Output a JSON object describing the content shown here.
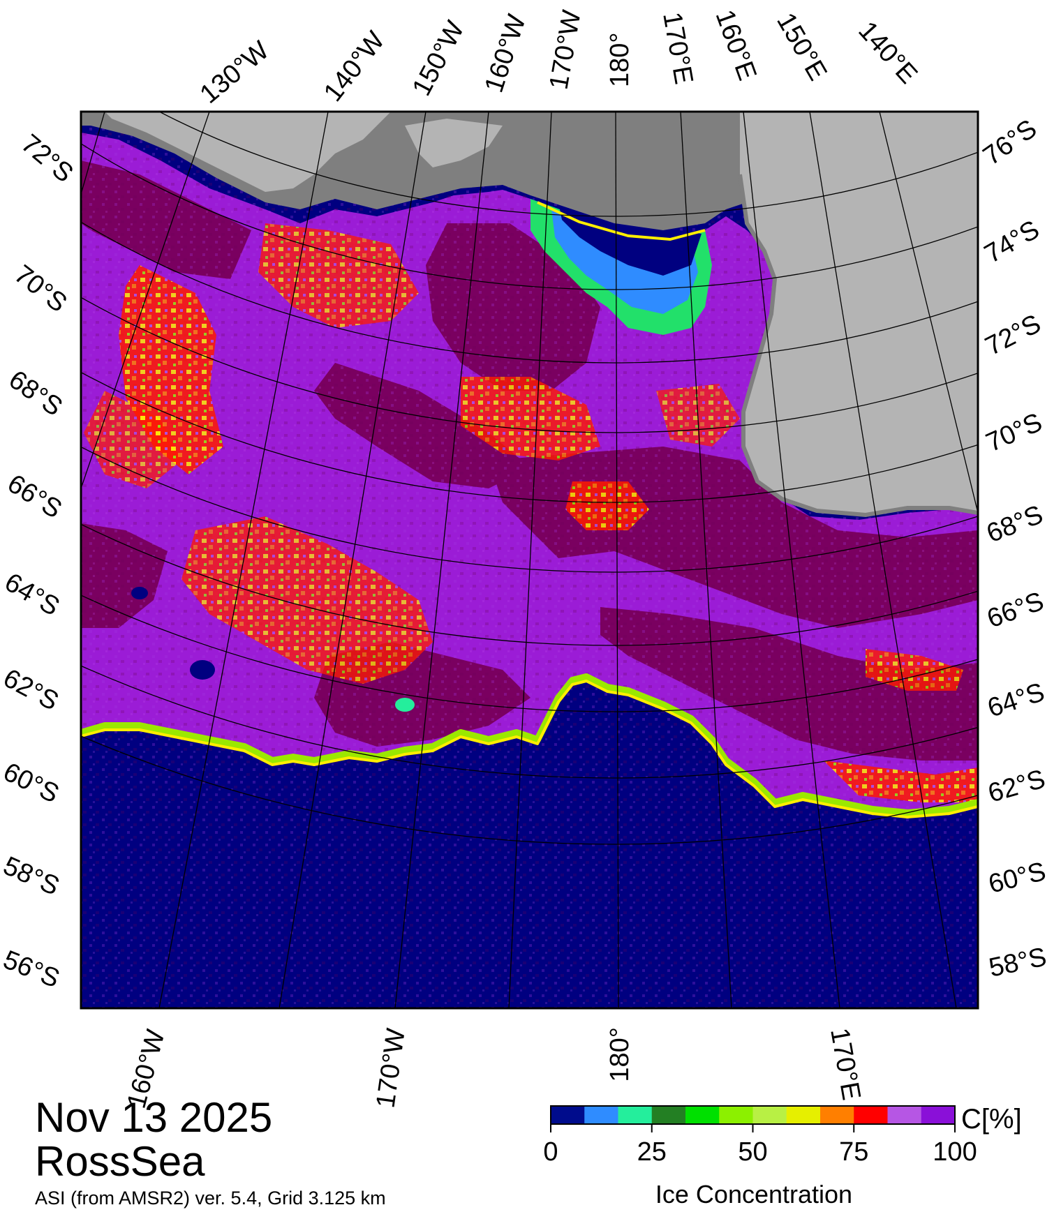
{
  "header": {
    "date": "Nov 13 2025",
    "region": "RossSea"
  },
  "footer": {
    "product": "ASI (from AMSR2) ver. 5.4,  Grid 3.125 km"
  },
  "map": {
    "top_labels": [
      "130°W",
      "140°W",
      "150°W",
      "160°W",
      "170°W",
      "180°",
      "170°E",
      "160°E",
      "150°E",
      "140°E"
    ],
    "left_labels": [
      "72°S",
      "70°S",
      "68°S",
      "66°S",
      "64°S",
      "62°S",
      "60°S",
      "58°S",
      "56°S"
    ],
    "right_labels": [
      "76°S",
      "74°S",
      "72°S",
      "70°S",
      "68°S",
      "66°S",
      "64°S",
      "62°S",
      "60°S",
      "58°S"
    ],
    "bottom_labels": [
      "160°W",
      "170°W",
      "180°",
      "170°E"
    ],
    "colors": {
      "open_water": "#000080",
      "land_ice_shelf": "#b4b4b4",
      "land_dark": "#7f7f7f",
      "ice_100": "#7a0060",
      "ice_high": "#9b1cd6"
    }
  },
  "legend": {
    "title": "Ice Concentration",
    "unit": "C[%]",
    "ticks": [
      "0",
      "25",
      "50",
      "75",
      "100"
    ],
    "colors": [
      "#000c8c",
      "#2f8cff",
      "#24ee9c",
      "#237f23",
      "#00e000",
      "#8cf000",
      "#b8f044",
      "#e6ef00",
      "#ff7f00",
      "#ff0000",
      "#b656e4",
      "#8a10d8"
    ]
  }
}
